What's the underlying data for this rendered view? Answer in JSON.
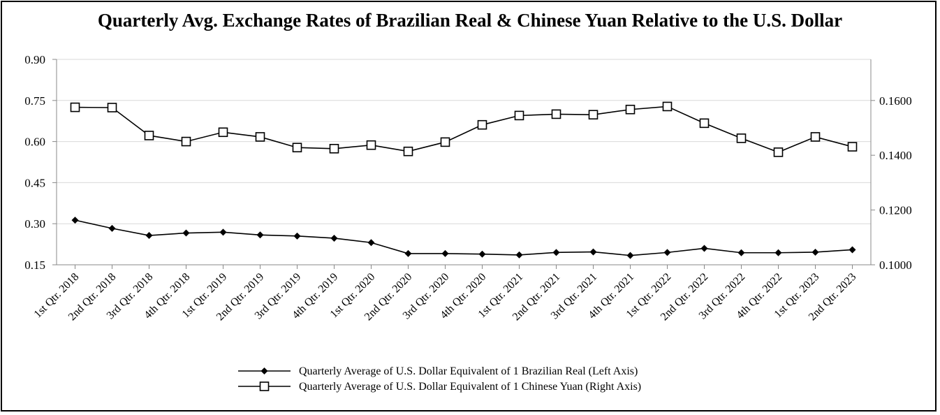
{
  "chart_data": {
    "type": "line",
    "title": "Quarterly Avg. Exchange Rates of Brazilian Real & Chinese Yuan Relative to the U.S. Dollar",
    "categories": [
      "1st Qtr. 2018",
      "2nd Qtr. 2018",
      "3rd Qtr. 2018",
      "4th Qtr. 2018",
      "1st Qtr. 2019",
      "2nd Qtr. 2019",
      "3rd Qtr. 2019",
      "4th Qtr. 2019",
      "1st Qtr. 2020",
      "2nd Qtr. 2020",
      "3rd Qtr. 2020",
      "4th Qtr. 2020",
      "1st Qtr. 2021",
      "2nd Qtr. 2021",
      "3rd Qtr. 2021",
      "4th Qtr. 2021",
      "1st Qtr. 2022",
      "2nd Qtr. 2022",
      "3rd Qtr. 2022",
      "4th Qtr. 2022",
      "1st Qtr. 2023",
      "2nd Qtr. 2023"
    ],
    "left_axis": {
      "ylim": [
        0.15,
        0.9
      ],
      "ticks": [
        "0.15",
        "0.30",
        "0.45",
        "0.60",
        "0.75",
        "0.90"
      ]
    },
    "right_axis": {
      "ylim": [
        0.1,
        0.175
      ],
      "ticks": [
        "0.1000",
        "0.1200",
        "0.1400",
        "0.1600"
      ]
    },
    "grid": true,
    "legend_position": "bottom",
    "series": [
      {
        "name": "Quarterly Average of U.S. Dollar Equivalent of 1 Brazilian Real (Left Axis)",
        "axis": "left",
        "marker": "diamond",
        "values": [
          0.313,
          0.283,
          0.257,
          0.266,
          0.269,
          0.259,
          0.255,
          0.247,
          0.231,
          0.191,
          0.191,
          0.189,
          0.186,
          0.195,
          0.197,
          0.184,
          0.195,
          0.21,
          0.194,
          0.194,
          0.196,
          0.205
        ]
      },
      {
        "name": "Quarterly Average of U.S. Dollar Equivalent of 1 Chinese Yuan (Right Axis)",
        "axis": "right",
        "marker": "square",
        "values": [
          0.1575,
          0.1574,
          0.1472,
          0.145,
          0.1484,
          0.1467,
          0.1428,
          0.1424,
          0.1437,
          0.1414,
          0.1448,
          0.1511,
          0.1545,
          0.155,
          0.1548,
          0.1567,
          0.1578,
          0.1517,
          0.1462,
          0.1411,
          0.1467,
          0.1431
        ]
      }
    ]
  }
}
